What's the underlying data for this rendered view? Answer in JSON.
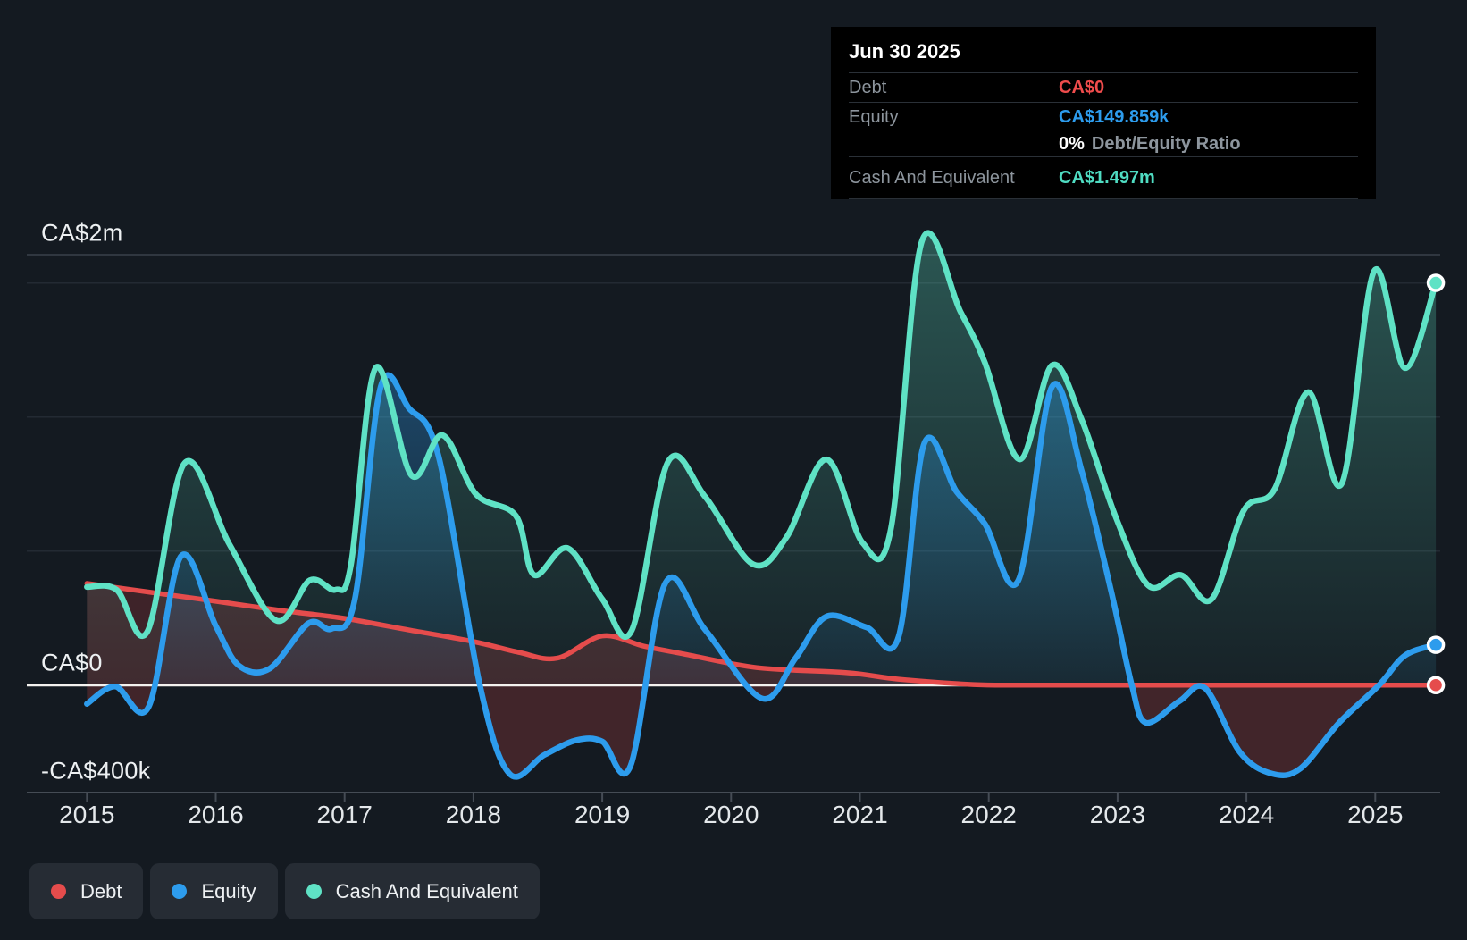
{
  "tooltip": {
    "title": "Jun 30 2025",
    "debt_label": "Debt",
    "debt_value": "CA$0",
    "equity_label": "Equity",
    "equity_value": "CA$149.859k",
    "ratio_value": "0%",
    "ratio_label": "Debt/Equity Ratio",
    "cash_label": "Cash And Equivalent",
    "cash_value": "CA$1.497m"
  },
  "y_axis": {
    "top": "CA$2m",
    "zero": "CA$0",
    "bottom": "-CA$400k"
  },
  "legend": {
    "debt": "Debt",
    "equity": "Equity",
    "cash": "Cash And Equivalent"
  },
  "colors": {
    "debt": "#e54c4c",
    "equity": "#2d9ced",
    "cash": "#5fe2c5",
    "zero_line": "#f4f2ef",
    "grid": "#232a33",
    "grid_top": "#39414b",
    "axis": "#454c55",
    "background": "#141a21",
    "tooltip_bg": "#000000",
    "legend_bg": "#262c34"
  },
  "chart_data": {
    "type": "area",
    "title": "",
    "x_unit": "decimal_year",
    "y_unit": "CA$ millions",
    "x_range": [
      2015.0,
      2025.5
    ],
    "y_axis_ticks": [
      {
        "label": "CA$2m",
        "value": 2.0
      },
      {
        "label": "CA$0",
        "value": 0.0
      },
      {
        "label": "-CA$400k",
        "value": -0.4
      }
    ],
    "x_ticks": [
      "2015",
      "2016",
      "2017",
      "2018",
      "2019",
      "2020",
      "2021",
      "2022",
      "2023",
      "2024",
      "2025"
    ],
    "legend_position": "bottom-left",
    "grid": "horizontal",
    "last_point_date": "Jun 30 2025",
    "series": [
      {
        "name": "Debt",
        "color": "#e54c4c",
        "points": [
          [
            2015.0,
            0.378
          ],
          [
            2015.5,
            0.345
          ],
          [
            2016.0,
            0.312
          ],
          [
            2016.5,
            0.278
          ],
          [
            2017.0,
            0.248
          ],
          [
            2017.5,
            0.205
          ],
          [
            2018.0,
            0.162
          ],
          [
            2018.35,
            0.122
          ],
          [
            2018.65,
            0.1
          ],
          [
            2019.0,
            0.183
          ],
          [
            2019.32,
            0.145
          ],
          [
            2019.63,
            0.116
          ],
          [
            2020.2,
            0.065
          ],
          [
            2020.9,
            0.046
          ],
          [
            2021.3,
            0.022
          ],
          [
            2021.88,
            0.002
          ],
          [
            2022.3,
            0
          ],
          [
            2022.8,
            0
          ],
          [
            2023.3,
            0
          ],
          [
            2023.8,
            0
          ],
          [
            2024.3,
            0
          ],
          [
            2024.8,
            0
          ],
          [
            2025.47,
            0
          ]
        ]
      },
      {
        "name": "Equity",
        "color": "#2d9ced",
        "points": [
          [
            2015.0,
            -0.07
          ],
          [
            2015.22,
            -0.005
          ],
          [
            2015.48,
            -0.08
          ],
          [
            2015.73,
            0.48
          ],
          [
            2016.0,
            0.22
          ],
          [
            2016.18,
            0.072
          ],
          [
            2016.42,
            0.062
          ],
          [
            2016.72,
            0.23
          ],
          [
            2016.9,
            0.21
          ],
          [
            2017.08,
            0.32
          ],
          [
            2017.28,
            1.11
          ],
          [
            2017.5,
            1.03
          ],
          [
            2017.73,
            0.85
          ],
          [
            2018.05,
            0.0
          ],
          [
            2018.28,
            -0.33
          ],
          [
            2018.55,
            -0.26
          ],
          [
            2018.8,
            -0.205
          ],
          [
            2019.0,
            -0.21
          ],
          [
            2019.22,
            -0.3
          ],
          [
            2019.49,
            0.38
          ],
          [
            2019.8,
            0.205
          ],
          [
            2020.24,
            -0.05
          ],
          [
            2020.5,
            0.1
          ],
          [
            2020.74,
            0.255
          ],
          [
            2021.05,
            0.215
          ],
          [
            2021.3,
            0.18
          ],
          [
            2021.5,
            0.9
          ],
          [
            2021.75,
            0.72
          ],
          [
            2021.97,
            0.6
          ],
          [
            2022.23,
            0.39
          ],
          [
            2022.49,
            1.11
          ],
          [
            2022.72,
            0.8
          ],
          [
            2022.95,
            0.35
          ],
          [
            2023.11,
            0.0
          ],
          [
            2023.22,
            -0.14
          ],
          [
            2023.48,
            -0.06
          ],
          [
            2023.68,
            -0.012
          ],
          [
            2023.95,
            -0.25
          ],
          [
            2024.2,
            -0.33
          ],
          [
            2024.42,
            -0.31
          ],
          [
            2024.72,
            -0.14
          ],
          [
            2025.03,
            0.0
          ],
          [
            2025.23,
            0.11
          ],
          [
            2025.47,
            0.149859
          ]
        ]
      },
      {
        "name": "Cash And Equivalent",
        "color": "#5fe2c5",
        "points": [
          [
            2015.0,
            0.365
          ],
          [
            2015.23,
            0.355
          ],
          [
            2015.47,
            0.2
          ],
          [
            2015.76,
            0.827
          ],
          [
            2016.11,
            0.52
          ],
          [
            2016.47,
            0.24
          ],
          [
            2016.73,
            0.39
          ],
          [
            2016.93,
            0.355
          ],
          [
            2017.05,
            0.45
          ],
          [
            2017.24,
            1.18
          ],
          [
            2017.52,
            0.78
          ],
          [
            2017.76,
            0.93
          ],
          [
            2018.02,
            0.71
          ],
          [
            2018.33,
            0.63
          ],
          [
            2018.47,
            0.41
          ],
          [
            2018.73,
            0.51
          ],
          [
            2019.0,
            0.32
          ],
          [
            2019.23,
            0.205
          ],
          [
            2019.51,
            0.83
          ],
          [
            2019.8,
            0.7
          ],
          [
            2020.17,
            0.45
          ],
          [
            2020.43,
            0.55
          ],
          [
            2020.74,
            0.84
          ],
          [
            2021.02,
            0.53
          ],
          [
            2021.24,
            0.58
          ],
          [
            2021.48,
            1.65
          ],
          [
            2021.78,
            1.39
          ],
          [
            2021.97,
            1.2
          ],
          [
            2022.24,
            0.84
          ],
          [
            2022.49,
            1.19
          ],
          [
            2022.72,
            0.99
          ],
          [
            2022.99,
            0.62
          ],
          [
            2023.24,
            0.37
          ],
          [
            2023.49,
            0.41
          ],
          [
            2023.73,
            0.32
          ],
          [
            2023.98,
            0.65
          ],
          [
            2024.22,
            0.73
          ],
          [
            2024.48,
            1.09
          ],
          [
            2024.74,
            0.75
          ],
          [
            2024.99,
            1.54
          ],
          [
            2025.23,
            1.18
          ],
          [
            2025.47,
            1.497
          ]
        ]
      }
    ]
  }
}
